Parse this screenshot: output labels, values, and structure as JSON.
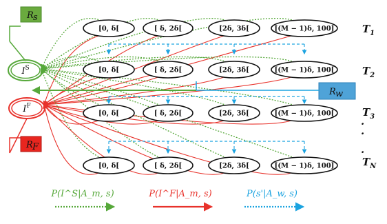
{
  "states": {
    "success": "I^S",
    "failure": "I^F"
  },
  "rewards": {
    "success": "R_s",
    "failure": "R_F",
    "wait": "R_w"
  },
  "tiers": [
    {
      "label": "T_1",
      "nodes": [
        "[0, δ[",
        "[ δ, 2δ[",
        "[2δ, 3δ[",
        "[(M − 1)δ, 100]"
      ]
    },
    {
      "label": "T_2",
      "nodes": [
        "[0, δ[",
        "[ δ, 2δ[",
        "[2δ, 3δ[",
        "[(M − 1)δ, 100["
      ]
    },
    {
      "label": "T_3",
      "nodes": [
        "[0, δ[",
        "[ δ, 2δ[",
        "[2δ, 3δ[",
        "[(M − 1)δ, 100["
      ]
    },
    {
      "label": "T_N",
      "nodes": [
        "[0, δ[",
        "[ δ, 2δ[",
        "[2δ, 3δ[",
        "[(M − 1)δ, 100]"
      ]
    }
  ],
  "ellipsis": [
    ".",
    ".",
    "."
  ],
  "legend": [
    {
      "label": "P(I^S|A_m, s)",
      "color": "#56a83a",
      "style": "dotted"
    },
    {
      "label": "P(I^F|A_m, s)",
      "color": "#e8322b",
      "style": "solid"
    },
    {
      "label": "P(s'|A_w, s)",
      "color": "#1ba3e0",
      "style": "dotted"
    }
  ],
  "colors": {
    "success": "#56a83a",
    "failure": "#e8322b",
    "wait": "#1ba3e0",
    "success_fill": "#6aaa3e",
    "failure_fill": "#e8261f",
    "wait_fill": "#4fa3d8"
  }
}
